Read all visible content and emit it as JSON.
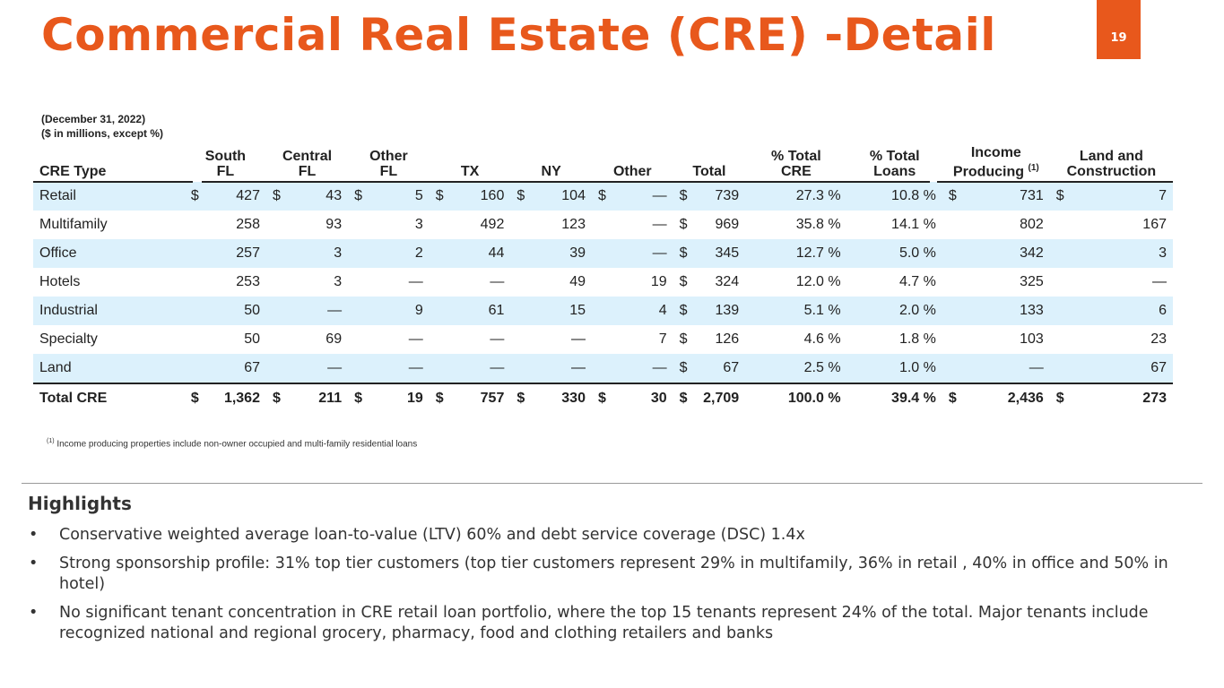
{
  "title": "Commercial Real Estate (CRE) -Detail",
  "page_number": "19",
  "notes": {
    "date": "(December 31, 2022)",
    "units": "($ in millions, except %)"
  },
  "table": {
    "headers": {
      "type": "CRE Type",
      "south_fl": [
        "South",
        "FL"
      ],
      "central_fl": [
        "Central",
        "FL"
      ],
      "other_fl": [
        "Other",
        "FL"
      ],
      "tx": "TX",
      "ny": "NY",
      "other": "Other",
      "total": "Total",
      "pct_cre": [
        "% Total",
        "CRE"
      ],
      "pct_loans": [
        "% Total",
        "Loans"
      ],
      "income": [
        "Income",
        "Producing",
        "(1)"
      ],
      "land": [
        "Land and",
        "Construction"
      ]
    },
    "rows": [
      {
        "type": "Retail",
        "c1": "$",
        "south": "427",
        "c2": "$",
        "central": "43",
        "c3": "$",
        "otherfl": "5",
        "c4": "$",
        "tx": "160",
        "c5": "$",
        "ny": "104",
        "c6": "$",
        "other": "—",
        "c7": "$",
        "total": "739",
        "pct_cre": "27.3 %",
        "pct_loans": "10.8 %",
        "c8": "$",
        "income": "731",
        "c9": "$",
        "land": "7"
      },
      {
        "type": "Multifamily",
        "c1": "",
        "south": "258",
        "c2": "",
        "central": "93",
        "c3": "",
        "otherfl": "3",
        "c4": "",
        "tx": "492",
        "c5": "",
        "ny": "123",
        "c6": "",
        "other": "—",
        "c7": "$",
        "total": "969",
        "pct_cre": "35.8 %",
        "pct_loans": "14.1 %",
        "c8": "",
        "income": "802",
        "c9": "",
        "land": "167"
      },
      {
        "type": "Office",
        "c1": "",
        "south": "257",
        "c2": "",
        "central": "3",
        "c3": "",
        "otherfl": "2",
        "c4": "",
        "tx": "44",
        "c5": "",
        "ny": "39",
        "c6": "",
        "other": "—",
        "c7": "$",
        "total": "345",
        "pct_cre": "12.7 %",
        "pct_loans": "5.0 %",
        "c8": "",
        "income": "342",
        "c9": "",
        "land": "3"
      },
      {
        "type": "Hotels",
        "c1": "",
        "south": "253",
        "c2": "",
        "central": "3",
        "c3": "",
        "otherfl": "—",
        "c4": "",
        "tx": "—",
        "c5": "",
        "ny": "49",
        "c6": "",
        "other": "19",
        "c7": "$",
        "total": "324",
        "pct_cre": "12.0 %",
        "pct_loans": "4.7 %",
        "c8": "",
        "income": "325",
        "c9": "",
        "land": "—"
      },
      {
        "type": "Industrial",
        "c1": "",
        "south": "50",
        "c2": "",
        "central": "—",
        "c3": "",
        "otherfl": "9",
        "c4": "",
        "tx": "61",
        "c5": "",
        "ny": "15",
        "c6": "",
        "other": "4",
        "c7": "$",
        "total": "139",
        "pct_cre": "5.1 %",
        "pct_loans": "2.0 %",
        "c8": "",
        "income": "133",
        "c9": "",
        "land": "6"
      },
      {
        "type": "Specialty",
        "c1": "",
        "south": "50",
        "c2": "",
        "central": "69",
        "c3": "",
        "otherfl": "—",
        "c4": "",
        "tx": "—",
        "c5": "",
        "ny": "—",
        "c6": "",
        "other": "7",
        "c7": "$",
        "total": "126",
        "pct_cre": "4.6 %",
        "pct_loans": "1.8 %",
        "c8": "",
        "income": "103",
        "c9": "",
        "land": "23"
      },
      {
        "type": "Land",
        "c1": "",
        "south": "67",
        "c2": "",
        "central": "—",
        "c3": "",
        "otherfl": "—",
        "c4": "",
        "tx": "—",
        "c5": "",
        "ny": "—",
        "c6": "",
        "other": "—",
        "c7": "$",
        "total": "67",
        "pct_cre": "2.5 %",
        "pct_loans": "1.0 %",
        "c8": "",
        "income": "—",
        "c9": "",
        "land": "67"
      },
      {
        "type": "Total CRE",
        "c1": "$",
        "south": "1,362",
        "c2": "$",
        "central": "211",
        "c3": "$",
        "otherfl": "19",
        "c4": "$",
        "tx": "757",
        "c5": "$",
        "ny": "330",
        "c6": "$",
        "other": "30",
        "c7": "$",
        "total": "2,709",
        "pct_cre": "100.0 %",
        "pct_loans": "39.4 %",
        "c8": "$",
        "income": "2,436",
        "c9": "$",
        "land": "273"
      }
    ]
  },
  "footnote": {
    "marker": "(1)",
    "text": "Income producing properties include non-owner occupied and multi-family residential loans"
  },
  "highlights": {
    "title": "Highlights",
    "bullets": [
      "Conservative weighted average loan-to-value (LTV) 60% and debt service coverage (DSC) 1.4x",
      "Strong sponsorship profile: 31% top tier customers (top tier customers represent 29% in multifamily, 36% in retail , 40% in office and 50% in hotel)",
      "No significant tenant concentration in CRE retail loan portfolio, where the top 15 tenants represent 24% of the total. Major tenants include recognized national and regional grocery, pharmacy, food and clothing retailers and banks"
    ]
  },
  "colors": {
    "accent": "#e8581c",
    "row_band": "#dcf1fc"
  }
}
